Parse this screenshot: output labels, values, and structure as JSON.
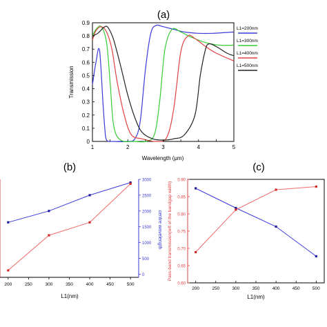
{
  "labels": {
    "a": "(a)",
    "b": "(b)",
    "c": "(c)"
  },
  "colors": {
    "blue": "#3a3ad9",
    "red": "#e04040",
    "green": "#33cc33",
    "black": "#222222",
    "pink": "#ee6b6b"
  },
  "chart_data": [
    {
      "type": "line",
      "panel": "(a)",
      "xlabel": "Wavelength (μm)",
      "ylabel": "Transmission",
      "xlim": [
        1,
        5
      ],
      "ylim": [
        0,
        0.9
      ],
      "xticks": [
        "1",
        "1.5",
        "2",
        "2.5",
        "3",
        "3.5",
        "4",
        "4.5",
        "5"
      ],
      "yticks": [
        "0",
        "0.1",
        "0.2",
        "0.3",
        "0.4",
        "0.5",
        "0.6",
        "0.7",
        "0.8",
        "0.9"
      ],
      "legend_position": "right",
      "series": [
        {
          "name": "L1=200nm",
          "color": "#3a3ad9",
          "x": [
            1.0,
            1.1,
            1.2,
            1.3,
            1.35,
            1.4,
            1.6,
            2.0,
            2.2,
            2.35,
            2.5,
            2.65,
            2.8,
            3.0,
            3.3,
            3.6,
            4.0,
            4.4,
            5.0
          ],
          "y": [
            0.43,
            0.6,
            0.69,
            0.28,
            0.1,
            0.01,
            0.0,
            0.0,
            0.02,
            0.15,
            0.55,
            0.82,
            0.88,
            0.87,
            0.85,
            0.83,
            0.82,
            0.82,
            0.83
          ]
        },
        {
          "name": "L1=300nm",
          "color": "#33cc33",
          "x": [
            1.0,
            1.1,
            1.25,
            1.4,
            1.5,
            1.6,
            1.8,
            2.2,
            2.5,
            2.75,
            2.9,
            3.05,
            3.25,
            3.5,
            3.8,
            4.2,
            4.6,
            5.0
          ],
          "y": [
            0.8,
            0.85,
            0.87,
            0.75,
            0.45,
            0.12,
            0.01,
            0.0,
            0.0,
            0.05,
            0.3,
            0.7,
            0.85,
            0.83,
            0.79,
            0.75,
            0.73,
            0.73
          ]
        },
        {
          "name": "L1=400nm",
          "color": "#e04040",
          "x": [
            1.0,
            1.1,
            1.25,
            1.4,
            1.55,
            1.7,
            1.9,
            2.1,
            2.4,
            2.8,
            3.1,
            3.3,
            3.5,
            3.7,
            3.9,
            4.2,
            4.5,
            5.0
          ],
          "y": [
            0.77,
            0.84,
            0.87,
            0.83,
            0.7,
            0.45,
            0.2,
            0.05,
            0.02,
            0.0,
            0.03,
            0.25,
            0.68,
            0.8,
            0.78,
            0.72,
            0.67,
            0.61
          ]
        },
        {
          "name": "L1=500nm",
          "color": "#222222",
          "x": [
            1.0,
            1.15,
            1.35,
            1.45,
            1.6,
            1.8,
            2.0,
            2.2,
            2.4,
            2.7,
            3.0,
            3.3,
            3.6,
            3.9,
            4.05,
            4.2,
            4.3,
            4.5,
            4.8,
            5.0
          ],
          "y": [
            0.8,
            0.82,
            0.87,
            0.86,
            0.77,
            0.57,
            0.35,
            0.18,
            0.07,
            0.02,
            0.01,
            0.02,
            0.05,
            0.2,
            0.5,
            0.7,
            0.74,
            0.72,
            0.67,
            0.65
          ]
        }
      ]
    },
    {
      "type": "line",
      "panel": "(b)",
      "xlabel": "L1(nm)",
      "ylabel_right": "centre wavelength",
      "xlim": [
        180,
        520
      ],
      "y2lim": [
        -100,
        3000
      ],
      "xticks": [
        "200",
        "250",
        "300",
        "350",
        "400",
        "450",
        "500"
      ],
      "y2ticks": [
        "0",
        "500",
        "1000",
        "1500",
        "2000",
        "2500",
        "3000"
      ],
      "series": [
        {
          "color": "#3a3ad9",
          "axis": "right",
          "x": [
            200,
            300,
            400,
            500
          ],
          "y": [
            1640,
            2000,
            2500,
            2900
          ]
        },
        {
          "color": "#ee6b6b",
          "axis": "right",
          "x": [
            200,
            300,
            400,
            500
          ],
          "y": [
            120,
            1230,
            1640,
            2860
          ]
        }
      ]
    },
    {
      "type": "line",
      "panel": "(c)",
      "xlabel": "L1(nm)",
      "ylabel": "Pass-band transmission(left of the bandgap width)",
      "xlim": [
        180,
        520
      ],
      "ylim": [
        0.6,
        0.9
      ],
      "xticks": [
        "200",
        "250",
        "300",
        "350",
        "400",
        "450",
        "500"
      ],
      "yticks": [
        "0.60",
        "0.65",
        "0.70",
        "0.75",
        "0.80",
        "0.85",
        "0.90"
      ],
      "series": [
        {
          "color": "#3a3ad9",
          "x": [
            200,
            300,
            400,
            500
          ],
          "y": [
            0.874,
            0.817,
            0.763,
            0.677
          ]
        },
        {
          "color": "#ee6b6b",
          "x": [
            200,
            300,
            400,
            500
          ],
          "y": [
            0.689,
            0.812,
            0.87,
            0.879
          ]
        }
      ]
    }
  ]
}
